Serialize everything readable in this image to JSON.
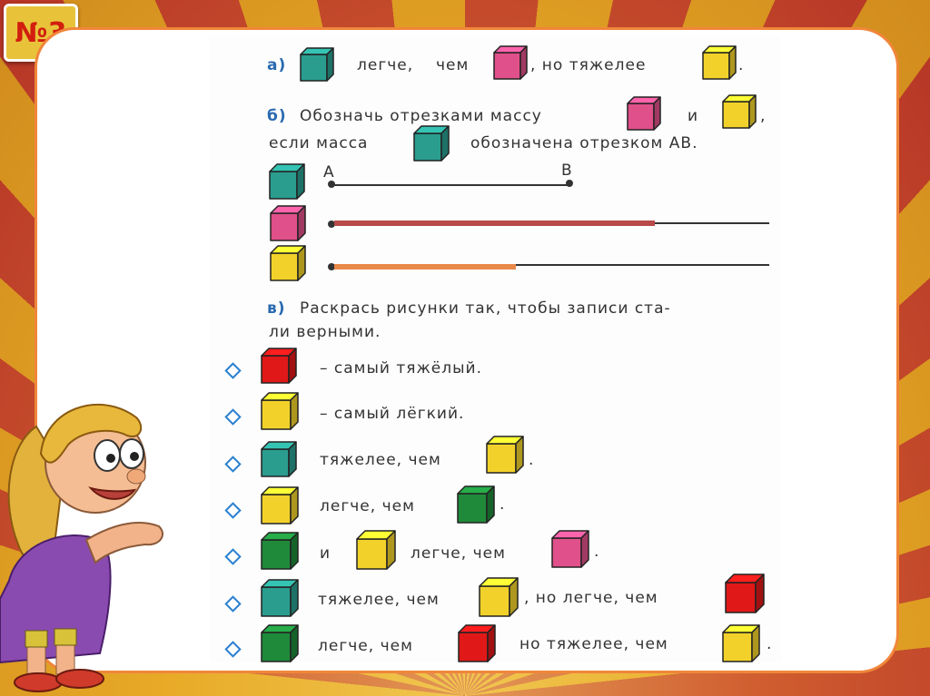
{
  "badge": "№3",
  "part_a": {
    "label": "а)",
    "lighter": "легче,",
    "than": "чем",
    "but_heavier": ", но тяжелее",
    "dot": "."
  },
  "part_b": {
    "label": "б)",
    "line1": "Обозначь отрезками массу",
    "and": "и",
    "comma": ",",
    "line2a": "если масса",
    "line2b": "обозначена отрезком АВ.",
    "point_a": "А",
    "point_b": "В"
  },
  "part_c": {
    "label": "в)",
    "line1": "Раскрась рисунки так, чтобы записи ста-",
    "line2": "ли верными.",
    "rows": [
      {
        "t1": "– самый тяжёлый."
      },
      {
        "t1": "– самый лёгкий."
      },
      {
        "t1": "тяжелее, чем",
        "end": "."
      },
      {
        "t1": "легче, чем",
        "end": "."
      },
      {
        "t1": "и",
        "t2": "легче, чем",
        "end": "."
      },
      {
        "t1": "тяжелее, чем",
        "t2": ", но легче, чем"
      },
      {
        "t1": "легче, чем",
        "t2": "но тяжелее, чем",
        "end": "."
      }
    ]
  },
  "colors": {
    "teal": "#2a9d8f",
    "pink": "#e0508a",
    "yellow": "#f2d22a",
    "red": "#e01818",
    "green": "#1f8a3a"
  }
}
